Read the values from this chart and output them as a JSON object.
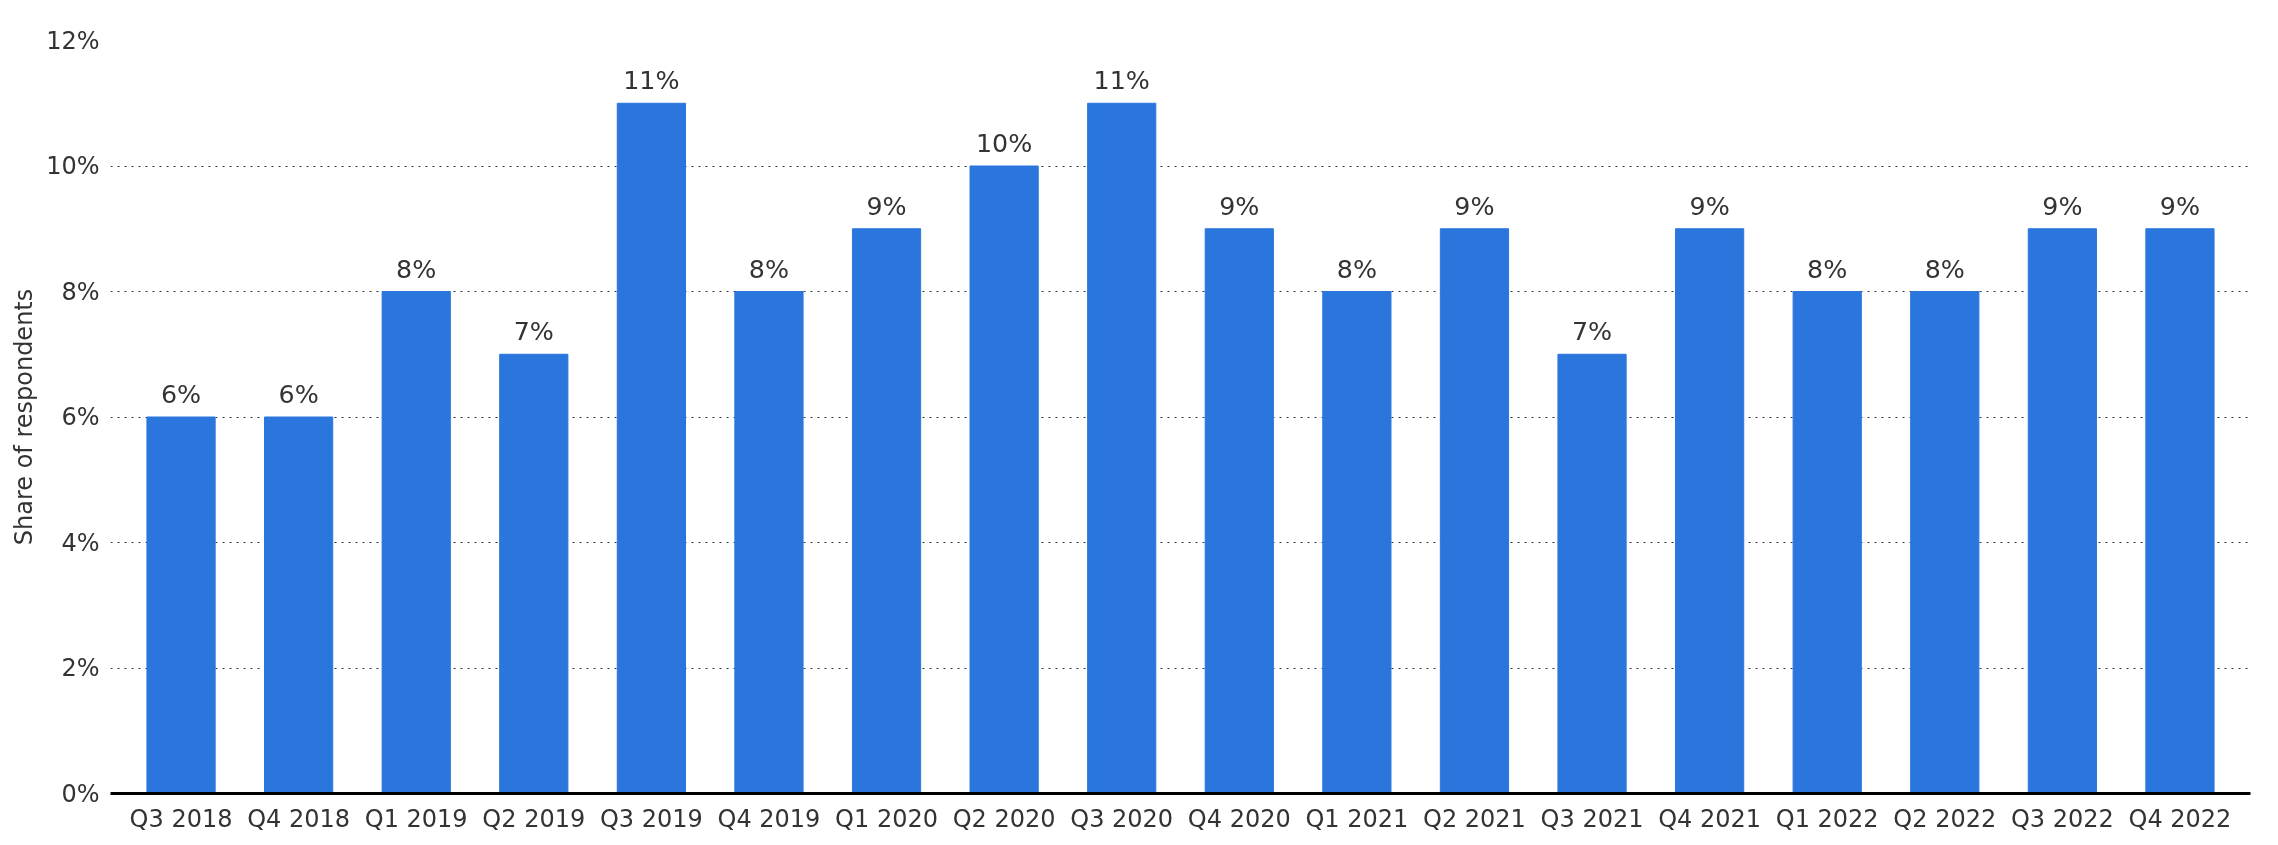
{
  "chart_data": {
    "type": "bar",
    "ylabel": "Share of respondents",
    "categories": [
      "Q3 2018",
      "Q4 2018",
      "Q1 2019",
      "Q2 2019",
      "Q3 2019",
      "Q4 2019",
      "Q1 2020",
      "Q2 2020",
      "Q3 2020",
      "Q4 2020",
      "Q1 2021",
      "Q2 2021",
      "Q3 2021",
      "Q4 2021",
      "Q1 2022",
      "Q2 2022",
      "Q3 2022",
      "Q4 2022"
    ],
    "values": [
      6,
      6,
      8,
      7,
      11,
      8,
      9,
      10,
      11,
      9,
      8,
      9,
      7,
      9,
      8,
      8,
      9,
      9
    ],
    "value_labels": [
      "6%",
      "6%",
      "8%",
      "7%",
      "11%",
      "8%",
      "9%",
      "10%",
      "11%",
      "9%",
      "8%",
      "9%",
      "7%",
      "9%",
      "8%",
      "8%",
      "9%",
      "9%"
    ],
    "color": "#2a76dd",
    "ylim": [
      0,
      12
    ],
    "yticks": [
      {
        "value": 0,
        "label": "0%"
      },
      {
        "value": 2,
        "label": "2%"
      },
      {
        "value": 4,
        "label": "4%"
      },
      {
        "value": 6,
        "label": "6%"
      },
      {
        "value": 8,
        "label": "8%"
      },
      {
        "value": 10,
        "label": "10%"
      },
      {
        "value": 12,
        "label": "12%"
      }
    ],
    "grid": "y"
  }
}
